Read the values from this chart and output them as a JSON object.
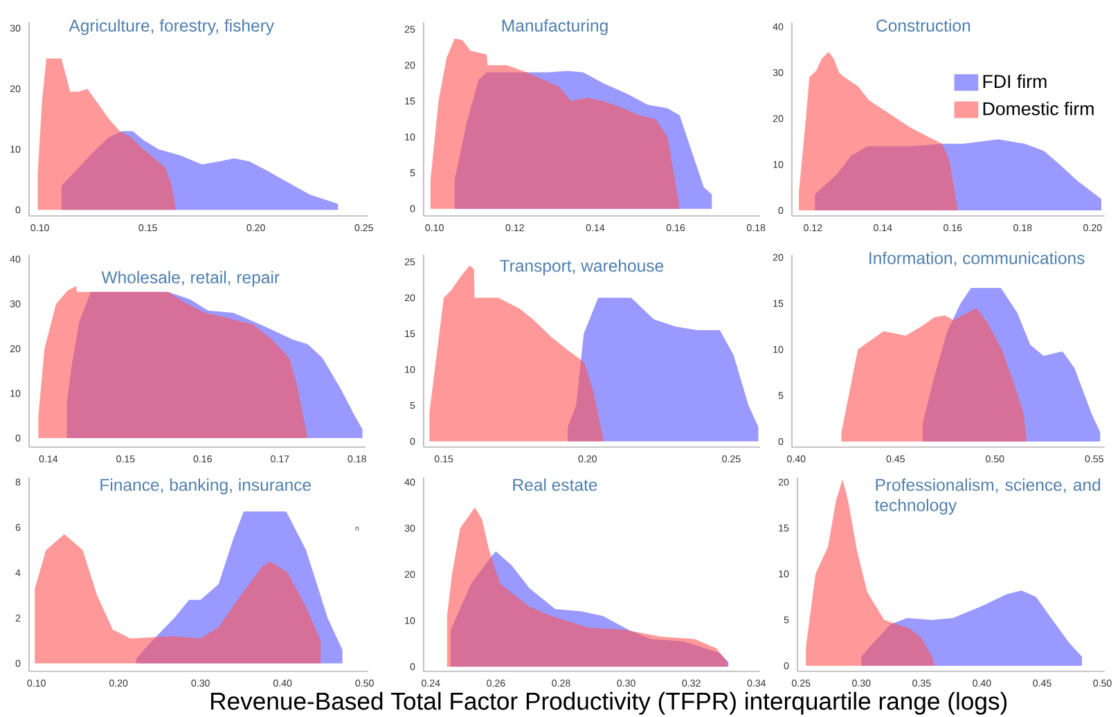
{
  "chart_data": [
    {
      "type": "area",
      "title": "Agriculture, forestry, fishery",
      "xlim": [
        0.095,
        0.252
      ],
      "ylim": [
        -1,
        31
      ],
      "xticks": [
        {
          "value": 0.1,
          "label": "0.10"
        },
        {
          "value": 0.15,
          "label": "0.15"
        },
        {
          "value": 0.2,
          "label": "0.20"
        },
        {
          "value": 0.25,
          "label": "0.25"
        }
      ],
      "yticks": [
        0,
        10,
        20,
        30
      ],
      "series": [
        {
          "color": "#9999ff",
          "x": [
            0.11,
            0.118,
            0.126,
            0.132,
            0.138,
            0.143,
            0.148,
            0.155,
            0.165,
            0.175,
            0.183,
            0.19,
            0.197,
            0.205,
            0.215,
            0.225,
            0.238
          ],
          "values": [
            4,
            7,
            10,
            12,
            13,
            13,
            11.5,
            10,
            9,
            7.5,
            8,
            8.5,
            8,
            6.5,
            4.5,
            2.5,
            1
          ]
        },
        {
          "color": "#ff5555",
          "x": [
            0.099,
            0.101,
            0.103,
            0.11,
            0.114,
            0.118,
            0.122,
            0.126,
            0.132,
            0.137,
            0.142,
            0.148,
            0.153,
            0.158,
            0.161,
            0.163
          ],
          "values": [
            6,
            18,
            25,
            25,
            19.5,
            19.5,
            20,
            18,
            15,
            13,
            12,
            10,
            8.5,
            7,
            4,
            0
          ]
        }
      ]
    },
    {
      "type": "area",
      "title": "Manufacturing",
      "xlim": [
        0.0973,
        0.181
      ],
      "ylim": [
        -1,
        26
      ],
      "xticks": [
        {
          "value": 0.1,
          "label": "0.10"
        },
        {
          "value": 0.12,
          "label": "0.12"
        },
        {
          "value": 0.14,
          "label": "0.14"
        },
        {
          "value": 0.16,
          "label": "0.16"
        },
        {
          "value": 0.18,
          "label": "0.18"
        }
      ],
      "yticks": [
        0,
        5,
        10,
        15,
        20,
        25
      ],
      "series": [
        {
          "color": "#9999ff",
          "x": [
            0.105,
            0.108,
            0.111,
            0.113,
            0.12,
            0.128,
            0.133,
            0.137,
            0.142,
            0.148,
            0.153,
            0.158,
            0.161,
            0.164,
            0.167,
            0.169
          ],
          "values": [
            4,
            12,
            18,
            19,
            19,
            19,
            19.2,
            19,
            17.5,
            16,
            14.5,
            14,
            13,
            8,
            3,
            2
          ]
        },
        {
          "color": "#ff5555",
          "x": [
            0.099,
            0.101,
            0.103,
            0.105,
            0.107,
            0.109,
            0.113,
            0.1132,
            0.118,
            0.123,
            0.127,
            0.131,
            0.134,
            0.138,
            0.142,
            0.147,
            0.151,
            0.155,
            0.158,
            0.161
          ],
          "values": [
            4,
            15,
            21,
            23.7,
            23.5,
            22,
            21.5,
            20,
            20,
            19,
            18,
            17,
            15,
            15.5,
            15,
            14,
            13,
            12.5,
            10,
            0
          ]
        }
      ]
    },
    {
      "type": "area",
      "title": "Construction",
      "legend": "top right",
      "xlim": [
        0.114,
        0.2035
      ],
      "ylim": [
        -1.2,
        41
      ],
      "xticks": [
        {
          "value": 0.12,
          "label": "0.12"
        },
        {
          "value": 0.14,
          "label": "0.14"
        },
        {
          "value": 0.16,
          "label": "0.16"
        },
        {
          "value": 0.18,
          "label": "0.18"
        },
        {
          "value": 0.2,
          "label": "0.20"
        }
      ],
      "yticks": [
        0,
        10,
        20,
        30,
        40
      ],
      "series": [
        {
          "name": "FDI firm",
          "color": "#9999ff",
          "x": [
            0.1206,
            0.127,
            0.131,
            0.1356,
            0.142,
            0.148,
            0.157,
            0.163,
            0.173,
            0.1806,
            0.186,
            0.1906,
            0.1956,
            0.2025
          ],
          "values": [
            3.5,
            8,
            12,
            14,
            14,
            14,
            14.5,
            14.5,
            15.5,
            14.5,
            13,
            10,
            6.5,
            2.5
          ]
        },
        {
          "name": "Domestic firm",
          "color": "#ff5555",
          "x": [
            0.116,
            0.118,
            0.119,
            0.121,
            0.1225,
            0.1245,
            0.126,
            0.1275,
            0.129,
            0.133,
            0.136,
            0.142,
            0.148,
            0.153,
            0.157,
            0.159,
            0.161,
            0.1615
          ],
          "values": [
            4,
            20,
            29,
            30.5,
            33,
            34.5,
            33,
            30,
            29,
            27,
            24,
            21,
            18,
            16,
            14.5,
            11,
            2,
            0
          ]
        }
      ]
    },
    {
      "type": "area",
      "title": "Wholesale, retail, repair",
      "xlim": [
        0.1375,
        0.1811
      ],
      "ylim": [
        -2,
        41
      ],
      "xticks": [
        {
          "value": 0.14,
          "label": "0.14"
        },
        {
          "value": 0.15,
          "label": "0.15"
        },
        {
          "value": 0.16,
          "label": "0.16"
        },
        {
          "value": 0.17,
          "label": "0.17"
        },
        {
          "value": 0.18,
          "label": "0.18"
        }
      ],
      "yticks": [
        0,
        10,
        20,
        30,
        40
      ],
      "series": [
        {
          "color": "#9999ff",
          "x": [
            0.1424,
            0.143,
            0.144,
            0.1455,
            0.1555,
            0.1584,
            0.1607,
            0.164,
            0.168,
            0.1717,
            0.1736,
            0.1755,
            0.1779,
            0.1797,
            0.1807
          ],
          "values": [
            8,
            16,
            26,
            32.7,
            32.7,
            31,
            28.5,
            28,
            25,
            22,
            21,
            18,
            11,
            5,
            2
          ]
        },
        {
          "color": "#ff5555",
          "x": [
            0.1387,
            0.1395,
            0.141,
            0.1425,
            0.1436,
            0.1437,
            0.15,
            0.1555,
            0.158,
            0.1603,
            0.163,
            0.165,
            0.1665,
            0.169,
            0.1712,
            0.1722,
            0.1736
          ],
          "values": [
            5,
            20,
            30,
            33,
            34,
            32.7,
            32.7,
            32.7,
            30,
            28,
            27,
            26,
            25.5,
            22,
            18,
            12,
            0
          ]
        }
      ]
    },
    {
      "type": "area",
      "title": "Transport, warehouse",
      "xlim": [
        0.143,
        0.26
      ],
      "ylim": [
        -0.8,
        26
      ],
      "xticks": [
        {
          "value": 0.15,
          "label": "0.15"
        },
        {
          "value": 0.2,
          "label": "0.20"
        },
        {
          "value": 0.25,
          "label": "0.25"
        }
      ],
      "yticks": [
        0,
        5,
        10,
        15,
        20,
        25
      ],
      "series": [
        {
          "color": "#9999ff",
          "x": [
            0.1931,
            0.196,
            0.1987,
            0.2037,
            0.2152,
            0.223,
            0.2305,
            0.2381,
            0.246,
            0.2508,
            0.256,
            0.2594
          ],
          "values": [
            2,
            5,
            15,
            20,
            20,
            17,
            16,
            15.5,
            15.5,
            12,
            5,
            2
          ]
        },
        {
          "color": "#ff5555",
          "x": [
            0.145,
            0.15,
            0.1525,
            0.156,
            0.159,
            0.1605,
            0.1607,
            0.169,
            0.1763,
            0.181,
            0.1875,
            0.1938,
            0.1989,
            0.202,
            0.2056
          ],
          "values": [
            4,
            20,
            21,
            23,
            24.5,
            24,
            20,
            20,
            18.5,
            17,
            14.5,
            12.5,
            11,
            7,
            0
          ]
        }
      ]
    },
    {
      "type": "area",
      "title": "Information, communications",
      "xlim": [
        0.3978,
        0.5553
      ],
      "ylim": [
        -0.6,
        20.3
      ],
      "xticks": [
        {
          "value": 0.4,
          "label": "0.40"
        },
        {
          "value": 0.45,
          "label": "0.45"
        },
        {
          "value": 0.5,
          "label": "0.50"
        },
        {
          "value": 0.55,
          "label": "0.55"
        }
      ],
      "yticks": [
        0,
        5,
        10,
        15,
        20
      ],
      "series": [
        {
          "color": "#9999ff",
          "x": [
            0.4636,
            0.4694,
            0.476,
            0.4827,
            0.488,
            0.503,
            0.5112,
            0.5178,
            0.5245,
            0.534,
            0.54,
            0.5487,
            0.553
          ],
          "values": [
            2,
            7,
            12,
            15,
            16.7,
            16.7,
            14,
            10.5,
            9.3,
            9.8,
            8,
            3,
            1
          ]
        },
        {
          "color": "#ff5555",
          "x": [
            0.4227,
            0.4264,
            0.431,
            0.4374,
            0.444,
            0.455,
            0.463,
            0.4694,
            0.475,
            0.479,
            0.4907,
            0.496,
            0.5035,
            0.51,
            0.5145,
            0.516
          ],
          "values": [
            1,
            5,
            10,
            11,
            12,
            11.5,
            12.5,
            13.5,
            13.7,
            13.2,
            14.5,
            13,
            10,
            6,
            3,
            0
          ]
        }
      ]
    },
    {
      "type": "area",
      "title": "Finance, banking, insurance",
      "annotations": [
        "n"
      ],
      "xlim": [
        0.091,
        0.5045
      ],
      "ylim": [
        -0.35,
        8.2
      ],
      "xticks": [
        {
          "value": 0.1,
          "label": "0.10"
        },
        {
          "value": 0.2,
          "label": "0.20"
        },
        {
          "value": 0.3,
          "label": "0.30"
        },
        {
          "value": 0.4,
          "label": "0.40"
        },
        {
          "value": 0.5,
          "label": "0.50"
        }
      ],
      "yticks": [
        0,
        2,
        4,
        6,
        8
      ],
      "series": [
        {
          "color": "#9999ff",
          "x": [
            0.2214,
            0.241,
            0.268,
            0.286,
            0.3,
            0.322,
            0.34,
            0.3527,
            0.4045,
            0.4286,
            0.455,
            0.473
          ],
          "values": [
            0.2,
            1,
            2,
            2.8,
            2.8,
            3.5,
            5.5,
            6.7,
            6.7,
            5,
            2,
            0.6
          ]
        },
        {
          "color": "#ff5555",
          "x": [
            0.098,
            0.1116,
            0.134,
            0.1563,
            0.174,
            0.1929,
            0.2143,
            0.268,
            0.3,
            0.322,
            0.349,
            0.3759,
            0.385,
            0.4063,
            0.4286,
            0.4464
          ],
          "values": [
            3.3,
            5,
            5.7,
            5,
            3,
            1.5,
            1.1,
            1.2,
            1.1,
            1.6,
            3,
            4.3,
            4.5,
            4,
            2.5,
            1
          ]
        }
      ]
    },
    {
      "type": "area",
      "title": "Real estate",
      "xlabel": "Revenue-Based Total Factor Productivity (TFPR)  interquartile range (logs)",
      "xlim": [
        0.2378,
        0.3411
      ],
      "ylim": [
        -1,
        41
      ],
      "xticks": [
        {
          "value": 0.24,
          "label": "0.24"
        },
        {
          "value": 0.26,
          "label": "0.26"
        },
        {
          "value": 0.28,
          "label": "0.28"
        },
        {
          "value": 0.3,
          "label": "0.30"
        },
        {
          "value": 0.32,
          "label": "0.32"
        },
        {
          "value": 0.34,
          "label": "0.34"
        }
      ],
      "yticks": [
        0,
        10,
        20,
        30,
        40
      ],
      "series": [
        {
          "color": "#9999ff",
          "x": [
            0.2461,
            0.2524,
            0.2587,
            0.26,
            0.2648,
            0.2703,
            0.2782,
            0.2861,
            0.2928,
            0.3007,
            0.3074,
            0.3175,
            0.3287,
            0.3314
          ],
          "values": [
            8,
            18,
            24,
            25,
            22,
            17,
            12.5,
            12,
            11,
            8,
            6,
            5.5,
            3,
            1
          ]
        },
        {
          "color": "#ff5555",
          "x": [
            0.245,
            0.2465,
            0.249,
            0.2535,
            0.2557,
            0.258,
            0.2613,
            0.2703,
            0.277,
            0.2883,
            0.2995,
            0.3108,
            0.3209,
            0.3277,
            0.331
          ],
          "values": [
            11,
            20,
            30,
            34.5,
            32,
            25,
            18,
            13,
            11,
            8.5,
            8,
            6.5,
            6,
            4,
            1
          ]
        }
      ]
    },
    {
      "type": "area",
      "title": "Professionalism, science, and technology",
      "xlim": [
        0.247,
        0.502
      ],
      "ylim": [
        -0.6,
        20.5
      ],
      "xticks": [
        {
          "value": 0.25,
          "label": "0.25"
        },
        {
          "value": 0.3,
          "label": "0.30"
        },
        {
          "value": 0.35,
          "label": "0.35"
        },
        {
          "value": 0.4,
          "label": "0.40"
        },
        {
          "value": 0.45,
          "label": "0.45"
        },
        {
          "value": 0.5,
          "label": "0.50"
        }
      ],
      "yticks": [
        0,
        5,
        10,
        15,
        20
      ],
      "series": [
        {
          "color": "#9999ff",
          "x": [
            0.3,
            0.31,
            0.324,
            0.338,
            0.3586,
            0.376,
            0.4,
            0.4207,
            0.433,
            0.445,
            0.4586,
            0.4724,
            0.483
          ],
          "values": [
            1,
            2.5,
            4.5,
            5.2,
            5,
            5.2,
            6.5,
            7.8,
            8.2,
            7.5,
            5,
            2.5,
            1
          ]
        },
        {
          "color": "#ff5555",
          "x": [
            0.254,
            0.262,
            0.2724,
            0.279,
            0.2845,
            0.289,
            0.2965,
            0.305,
            0.319,
            0.341,
            0.35,
            0.3586,
            0.361
          ],
          "values": [
            2,
            10,
            13,
            18,
            20.3,
            18,
            12.5,
            8,
            5,
            4,
            3,
            1,
            0
          ]
        }
      ]
    }
  ]
}
